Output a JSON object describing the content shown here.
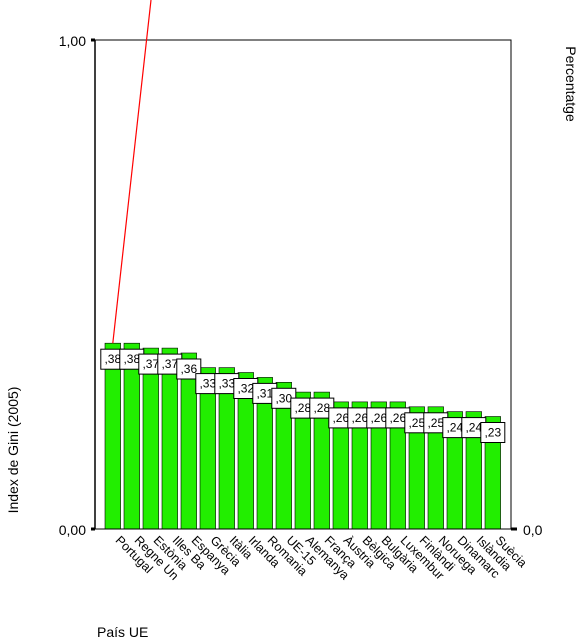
{
  "chart_data": {
    "type": "bar",
    "xlabel": "País UE",
    "ylabel": "Index de Gini (2005)",
    "ylabel_right": "Percentatge",
    "ylim": [
      0,
      1
    ],
    "yticks": [
      "0,00",
      "1,00"
    ],
    "right_ticks": [
      "0,0"
    ],
    "bar_color": "#22ee00",
    "line_color": "#ff0000",
    "categories": [
      "Portugal",
      "Regne Un",
      "Estònia",
      "Illes Ba",
      "Espanya",
      "Grècia",
      "Itàlia",
      "Irlanda",
      "Romania",
      "UE-15",
      "Alemanya",
      "França",
      "Àustria",
      "Bèlgica",
      "Bulgària",
      "Luxembur",
      "Finlàndi",
      "Noruega",
      "Dinamarc",
      "Islàndia",
      "Suècia"
    ],
    "values": [
      0.38,
      0.38,
      0.37,
      0.37,
      0.36,
      0.33,
      0.33,
      0.32,
      0.31,
      0.3,
      0.28,
      0.28,
      0.26,
      0.26,
      0.26,
      0.26,
      0.25,
      0.25,
      0.24,
      0.24,
      0.23
    ],
    "value_labels": [
      ",38",
      ",38",
      ",37",
      ",37",
      ",36",
      ",33",
      ",33",
      ",32",
      ",31",
      ",30",
      ",28",
      ",28",
      ",26",
      ",26",
      ",26",
      ",26",
      ",25",
      ",25",
      ",24",
      ",24",
      ",23"
    ],
    "cumulative_line": {
      "x_start_index": 0,
      "y_start": 0.38
    }
  }
}
